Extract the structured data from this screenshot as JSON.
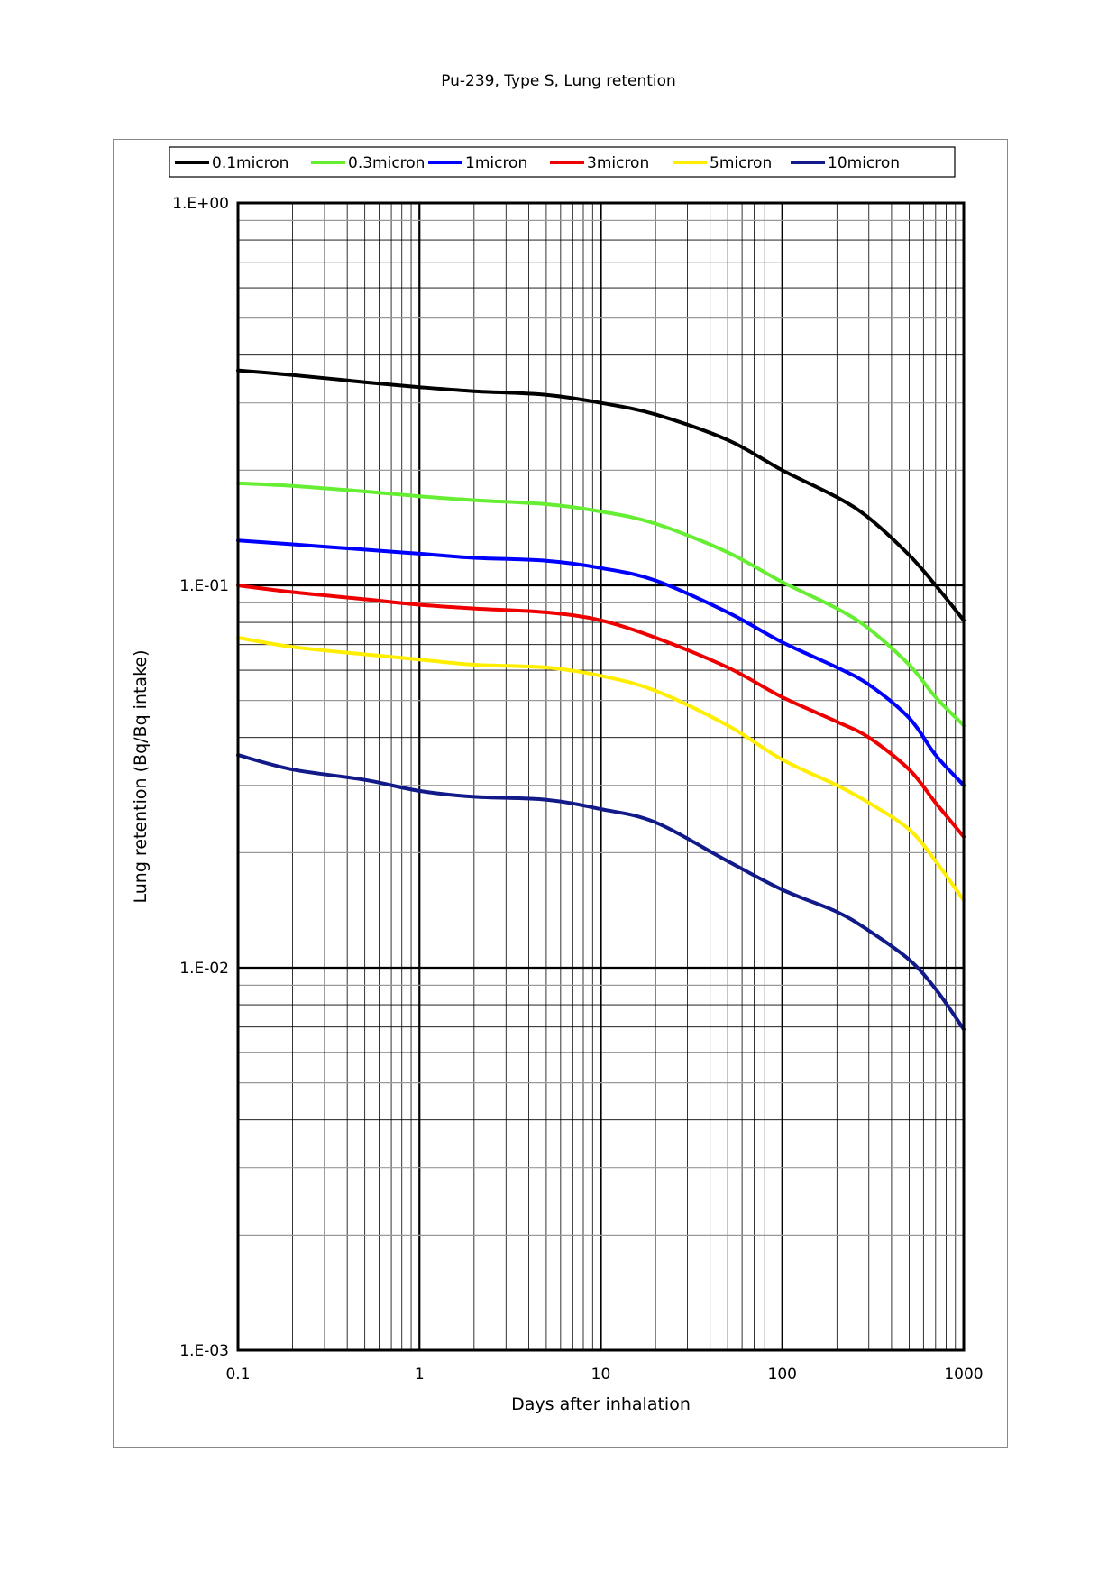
{
  "chart_data": {
    "type": "line",
    "title": "Pu-239, Type S, Lung retention",
    "xlabel": "Days after inhalation",
    "ylabel": "Lung retention (Bq/Bq intake)",
    "xscale": "log",
    "yscale": "log",
    "xlim": [
      0.1,
      1000
    ],
    "ylim": [
      0.001,
      1
    ],
    "xticks": [
      0.1,
      1,
      10,
      100,
      1000
    ],
    "xtick_labels": [
      "0.1",
      "1",
      "10",
      "100",
      "1000"
    ],
    "yticks": [
      1,
      0.1,
      0.01,
      0.001
    ],
    "ytick_labels": [
      "1.E+00",
      "1.E-01",
      "1.E-02",
      "1.E-03"
    ],
    "grid": true,
    "legend_position": "top",
    "x": [
      0.1,
      0.2,
      0.5,
      1,
      2,
      5,
      10,
      20,
      50,
      100,
      200,
      300,
      500,
      700,
      1000
    ],
    "series": [
      {
        "name": "0.1micron",
        "color": "#000000",
        "values": [
          0.365,
          0.355,
          0.34,
          0.33,
          0.322,
          0.315,
          0.3,
          0.28,
          0.24,
          0.2,
          0.17,
          0.15,
          0.12,
          0.1,
          0.081
        ]
      },
      {
        "name": "0.3micron",
        "color": "#66ee33",
        "values": [
          0.185,
          0.182,
          0.176,
          0.171,
          0.167,
          0.163,
          0.156,
          0.145,
          0.122,
          0.102,
          0.087,
          0.077,
          0.062,
          0.051,
          0.043
        ]
      },
      {
        "name": "1micron",
        "color": "#0000ff",
        "values": [
          0.131,
          0.128,
          0.124,
          0.121,
          0.118,
          0.116,
          0.111,
          0.103,
          0.085,
          0.071,
          0.061,
          0.055,
          0.045,
          0.036,
          0.03
        ]
      },
      {
        "name": "3micron",
        "color": "#ee0000",
        "values": [
          0.1,
          0.096,
          0.092,
          0.089,
          0.087,
          0.085,
          0.081,
          0.073,
          0.061,
          0.051,
          0.044,
          0.04,
          0.033,
          0.027,
          0.022
        ]
      },
      {
        "name": "5micron",
        "color": "#ffee00",
        "values": [
          0.073,
          0.069,
          0.066,
          0.064,
          0.062,
          0.061,
          0.058,
          0.053,
          0.043,
          0.035,
          0.03,
          0.027,
          0.023,
          0.019,
          0.015
        ]
      },
      {
        "name": "10micron",
        "color": "#111a88",
        "values": [
          0.036,
          0.033,
          0.031,
          0.029,
          0.028,
          0.0275,
          0.026,
          0.024,
          0.019,
          0.016,
          0.014,
          0.0125,
          0.0105,
          0.0088,
          0.0069
        ]
      }
    ]
  }
}
